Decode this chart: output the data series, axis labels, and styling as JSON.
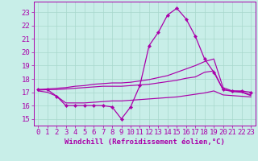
{
  "background_color": "#c8eee8",
  "grid_color": "#a8d8cc",
  "line_color": "#aa00aa",
  "xlabel": "Windchill (Refroidissement éolien,°C)",
  "ylabel_ticks": [
    15,
    16,
    17,
    18,
    19,
    20,
    21,
    22,
    23
  ],
  "xlim": [
    -0.5,
    23.5
  ],
  "ylim": [
    14.5,
    23.8
  ],
  "xticks": [
    0,
    1,
    2,
    3,
    4,
    5,
    6,
    7,
    8,
    9,
    10,
    11,
    12,
    13,
    14,
    15,
    16,
    17,
    18,
    19,
    20,
    21,
    22,
    23
  ],
  "line_main": {
    "x": [
      0,
      1,
      2,
      3,
      4,
      5,
      6,
      7,
      8,
      9,
      10,
      11,
      12,
      13,
      14,
      15,
      16,
      17,
      18,
      19,
      20,
      21,
      22,
      23
    ],
    "y": [
      17.2,
      17.2,
      16.7,
      16.0,
      16.0,
      16.0,
      16.0,
      16.0,
      15.9,
      15.0,
      15.9,
      17.5,
      20.5,
      21.5,
      22.8,
      23.3,
      22.5,
      21.2,
      19.5,
      18.5,
      17.2,
      17.1,
      17.1,
      17.0
    ]
  },
  "line_upper": {
    "x": [
      0,
      1,
      2,
      3,
      4,
      5,
      6,
      7,
      8,
      9,
      10,
      11,
      12,
      13,
      14,
      15,
      16,
      17,
      18,
      19,
      20,
      21,
      22,
      23
    ],
    "y": [
      17.2,
      17.25,
      17.3,
      17.35,
      17.45,
      17.5,
      17.6,
      17.65,
      17.7,
      17.7,
      17.75,
      17.85,
      17.95,
      18.1,
      18.25,
      18.5,
      18.75,
      19.0,
      19.3,
      19.5,
      17.35,
      17.1,
      17.05,
      16.8
    ]
  },
  "line_middle": {
    "x": [
      0,
      1,
      2,
      3,
      4,
      5,
      6,
      7,
      8,
      9,
      10,
      11,
      12,
      13,
      14,
      15,
      16,
      17,
      18,
      19,
      20,
      21,
      22,
      23
    ],
    "y": [
      17.15,
      17.2,
      17.2,
      17.25,
      17.3,
      17.35,
      17.4,
      17.45,
      17.45,
      17.45,
      17.5,
      17.55,
      17.6,
      17.7,
      17.8,
      17.9,
      18.05,
      18.15,
      18.5,
      18.6,
      17.2,
      17.05,
      17.0,
      16.75
    ]
  },
  "line_lower": {
    "x": [
      0,
      1,
      2,
      3,
      4,
      5,
      6,
      7,
      8,
      9,
      10,
      11,
      12,
      13,
      14,
      15,
      16,
      17,
      18,
      19,
      20,
      21,
      22,
      23
    ],
    "y": [
      17.1,
      17.0,
      16.7,
      16.2,
      16.2,
      16.2,
      16.25,
      16.3,
      16.35,
      16.35,
      16.4,
      16.45,
      16.5,
      16.55,
      16.6,
      16.65,
      16.75,
      16.85,
      16.95,
      17.1,
      16.8,
      16.75,
      16.7,
      16.65
    ]
  },
  "tick_fontsize": 6.5,
  "label_fontsize": 6.5
}
